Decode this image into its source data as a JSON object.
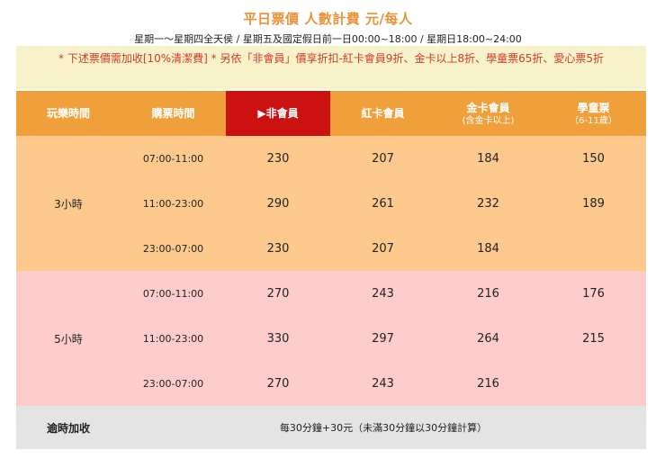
{
  "header": {
    "title": "平日票價 人數計費 元/每人",
    "subtitle": "星期一～星期四全天侯 / 星期五及國定假日前一日00:00~18:00 / 星期日18:00~24:00"
  },
  "notice": "* 下述票價需加收[10%清潔費] * 另依「非會員」價享折扣-紅卡會員9折、金卡以上8折、學童票65折、愛心票5折",
  "columns": [
    {
      "label": "玩樂時間",
      "sub": ""
    },
    {
      "label": "購票時間",
      "sub": ""
    },
    {
      "label": "▶非會員",
      "sub": ""
    },
    {
      "label": "紅卡會員",
      "sub": ""
    },
    {
      "label": "金卡會員",
      "sub": "(含金卡以上)"
    },
    {
      "label": "學童票",
      "sub": "（6-11歲）"
    }
  ],
  "groups": [
    {
      "duration": "3小時",
      "rows": [
        {
          "slot": "07:00-11:00",
          "non_member": "230",
          "red_card": "207",
          "gold_card": "184"
        },
        {
          "slot": "11:00-23:00",
          "non_member": "290",
          "red_card": "261",
          "gold_card": "232"
        },
        {
          "slot": "23:00-07:00",
          "non_member": "230",
          "red_card": "207",
          "gold_card": "184"
        }
      ],
      "student": [
        "150",
        "189"
      ]
    },
    {
      "duration": "5小時",
      "rows": [
        {
          "slot": "07:00-11:00",
          "non_member": "270",
          "red_card": "243",
          "gold_card": "216"
        },
        {
          "slot": "11:00-23:00",
          "non_member": "330",
          "red_card": "297",
          "gold_card": "264"
        },
        {
          "slot": "23:00-07:00",
          "non_member": "270",
          "red_card": "243",
          "gold_card": "216"
        }
      ],
      "student": [
        "176",
        "215"
      ]
    }
  ],
  "overtime": {
    "label": "逾時加收",
    "text": "每30分鐘+30元（未滿30分鐘以30分鐘計算）"
  },
  "colors": {
    "title": "#e8933a",
    "notice_bg": "#f7f2c9",
    "notice_text": "#d23a2a",
    "header_bg": "#f0a03a",
    "active_header_bg": "#cc1111",
    "group1_bg": "#fdc98d",
    "group2_bg": "#ffcccc",
    "overtime_bg": "#e4e4e4"
  }
}
